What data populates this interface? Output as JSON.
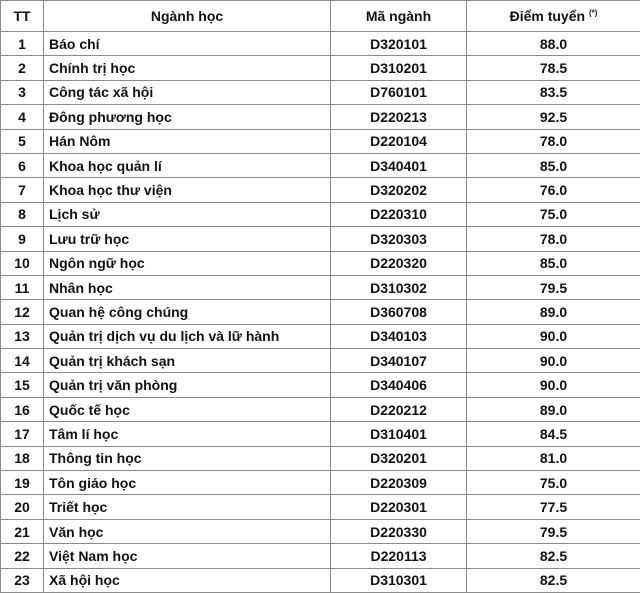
{
  "header": {
    "tt": "TT",
    "major": "Ngành học",
    "code": "Mã ngành",
    "score": "Điểm tuyển",
    "score_note": "(*)"
  },
  "rows": [
    {
      "tt": "1",
      "major": "Báo chí",
      "code": "D320101",
      "score": "88.0"
    },
    {
      "tt": "2",
      "major": "Chính trị học",
      "code": "D310201",
      "score": "78.5"
    },
    {
      "tt": "3",
      "major": "Công tác xã hội",
      "code": "D760101",
      "score": "83.5"
    },
    {
      "tt": "4",
      "major": "Đông phương học",
      "code": "D220213",
      "score": "92.5"
    },
    {
      "tt": "5",
      "major": "Hán Nôm",
      "code": "D220104",
      "score": "78.0"
    },
    {
      "tt": "6",
      "major": "Khoa học quản lí",
      "code": "D340401",
      "score": "85.0"
    },
    {
      "tt": "7",
      "major": "Khoa học thư viện",
      "code": "D320202",
      "score": "76.0"
    },
    {
      "tt": "8",
      "major": "Lịch sử",
      "code": "D220310",
      "score": "75.0"
    },
    {
      "tt": "9",
      "major": "Lưu trữ học",
      "code": "D320303",
      "score": "78.0"
    },
    {
      "tt": "10",
      "major": "Ngôn ngữ học",
      "code": "D220320",
      "score": "85.0"
    },
    {
      "tt": "11",
      "major": "Nhân học",
      "code": "D310302",
      "score": "79.5"
    },
    {
      "tt": "12",
      "major": "Quan hệ công chúng",
      "code": "D360708",
      "score": "89.0"
    },
    {
      "tt": "13",
      "major": "Quản trị dịch vụ du lịch và lữ hành",
      "code": "D340103",
      "score": "90.0"
    },
    {
      "tt": "14",
      "major": "Quản trị khách sạn",
      "code": "D340107",
      "score": "90.0"
    },
    {
      "tt": "15",
      "major": "Quản trị văn phòng",
      "code": "D340406",
      "score": "90.0"
    },
    {
      "tt": "16",
      "major": "Quốc tế học",
      "code": "D220212",
      "score": "89.0"
    },
    {
      "tt": "17",
      "major": "Tâm lí học",
      "code": "D310401",
      "score": "84.5"
    },
    {
      "tt": "18",
      "major": "Thông tin học",
      "code": "D320201",
      "score": "81.0"
    },
    {
      "tt": "19",
      "major": "Tôn giáo học",
      "code": "D220309",
      "score": "75.0"
    },
    {
      "tt": "20",
      "major": "Triết học",
      "code": "D220301",
      "score": "77.5"
    },
    {
      "tt": "21",
      "major": "Văn học",
      "code": "D220330",
      "score": "79.5"
    },
    {
      "tt": "22",
      "major": "Việt Nam học",
      "code": "D220113",
      "score": "82.5"
    },
    {
      "tt": "23",
      "major": "Xã hội học",
      "code": "D310301",
      "score": "82.5"
    }
  ]
}
